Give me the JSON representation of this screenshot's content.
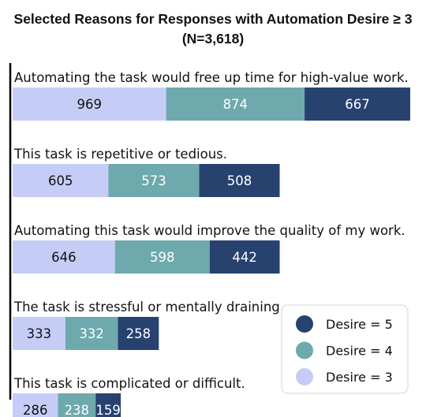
{
  "chart_data": {
    "type": "bar",
    "orientation": "horizontal",
    "stacked": true,
    "title_line1": "Selected Reasons for Responses with Automation Desire ≥ 3",
    "title_line2": "(N=3,618)",
    "categories": [
      "Automating the task would free up time for high-value work.",
      "This task is repetitive or tedious.",
      "Automating this task would improve the quality of my work.",
      "The task is stressful or mentally draining.",
      "This task is complicated or difficult."
    ],
    "series": [
      {
        "name": "Desire = 3",
        "color": "#c5cdf7",
        "label_color": "#111111",
        "values": [
          969,
          605,
          646,
          333,
          286
        ]
      },
      {
        "name": "Desire = 4",
        "color": "#6ea9ad",
        "label_color": "#ffffff",
        "values": [
          874,
          573,
          598,
          332,
          238
        ]
      },
      {
        "name": "Desire = 5",
        "color": "#27426f",
        "label_color": "#ffffff",
        "values": [
          667,
          508,
          442,
          258,
          159
        ]
      }
    ],
    "legend": {
      "position": "bottom-right",
      "order": [
        "Desire = 5",
        "Desire = 4",
        "Desire = 3"
      ]
    },
    "grid": false
  }
}
